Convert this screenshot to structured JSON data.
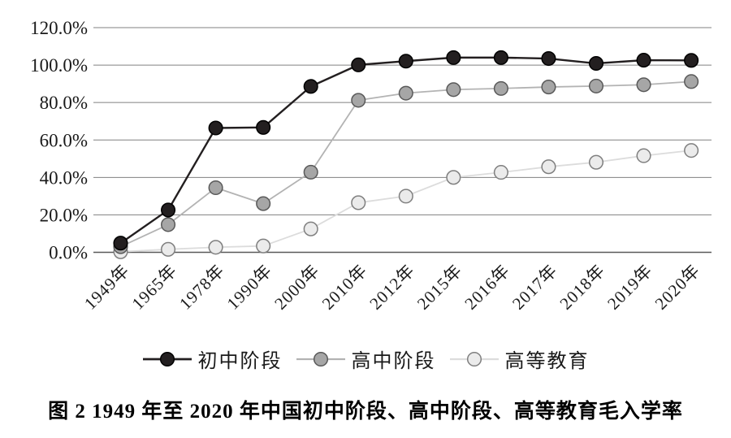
{
  "figure": {
    "caption": "图 2  1949 年至 2020 年中国初中阶段、高中阶段、高等教育毛入学率"
  },
  "chart_data": {
    "type": "line",
    "title": "",
    "xlabel": "",
    "ylabel": "",
    "categories": [
      "1949年",
      "1965年",
      "1978年",
      "1990年",
      "2000年",
      "2010年",
      "2012年",
      "2015年",
      "2016年",
      "2017年",
      "2018年",
      "2019年",
      "2020年"
    ],
    "series": [
      {
        "name": "初中阶段",
        "values": [
          4.9,
          22.6,
          66.4,
          66.7,
          88.6,
          100.1,
          102.1,
          104.0,
          104.0,
          103.5,
          100.9,
          102.6,
          102.5
        ],
        "line_color": "#231f20",
        "line_width": 2.4,
        "marker_fill": "#231f20",
        "marker_stroke": "#000000"
      },
      {
        "name": "高中阶段",
        "values": [
          3.0,
          14.8,
          34.5,
          26.0,
          42.8,
          81.2,
          85.0,
          86.9,
          87.5,
          88.3,
          88.8,
          89.5,
          91.2
        ],
        "line_color": "#b3b3b3",
        "line_width": 1.8,
        "marker_fill": "#a6a6a6",
        "marker_stroke": "#595959"
      },
      {
        "name": "高等教育",
        "values": [
          0.3,
          1.6,
          2.7,
          3.4,
          12.5,
          26.5,
          30.0,
          40.0,
          42.7,
          45.7,
          48.1,
          51.6,
          54.4
        ],
        "line_color": "#dcdcdc",
        "line_width": 1.8,
        "marker_fill": "#ebebeb",
        "marker_stroke": "#7f7f7f"
      }
    ],
    "ylim": [
      0,
      120
    ],
    "y_tick_step": 20,
    "y_ticks": [
      "0.0%",
      "20.0%",
      "40.0%",
      "60.0%",
      "80.0%",
      "100.0%",
      "120.0%"
    ],
    "grid": true,
    "grid_color": "#808080",
    "axis_color": "#595959",
    "text_color": "#1a1a1a",
    "legend_position": "bottom"
  }
}
